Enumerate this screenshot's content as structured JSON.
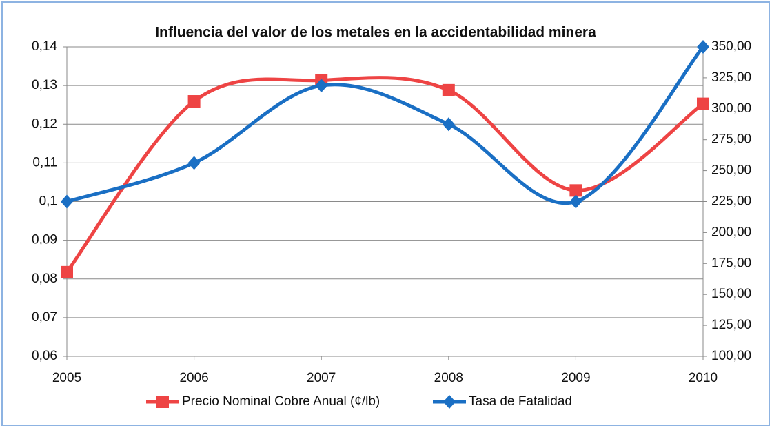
{
  "chart_data": {
    "type": "line",
    "title": "Influencia del valor de los metales en la accidentabilidad minera",
    "categories": [
      "2005",
      "2006",
      "2007",
      "2008",
      "2009",
      "2010"
    ],
    "series": [
      {
        "name": "Precio Nominal Cobre Anual (¢/lb)",
        "color": "#ee4444",
        "marker": "square",
        "axis": "y2",
        "values": [
          168,
          306,
          323,
          315,
          234,
          304
        ]
      },
      {
        "name": "Tasa de Fatalidad",
        "color": "#1a6fc4",
        "marker": "diamond",
        "values": [
          0.1,
          0.11,
          0.13,
          0.12,
          0.1,
          0.14
        ]
      }
    ],
    "ylim": [
      0.06,
      0.14
    ],
    "yticks": [
      {
        "value": 0.06,
        "label": "0,06"
      },
      {
        "value": 0.07,
        "label": "0,07"
      },
      {
        "value": 0.08,
        "label": "0,08"
      },
      {
        "value": 0.09,
        "label": "0,09"
      },
      {
        "value": 0.1,
        "label": "0,1"
      },
      {
        "value": 0.11,
        "label": "0,11"
      },
      {
        "value": 0.12,
        "label": "0,12"
      },
      {
        "value": 0.13,
        "label": "0,13"
      },
      {
        "value": 0.14,
        "label": "0,14"
      }
    ],
    "y2lim": [
      100,
      350
    ],
    "y2ticks": [
      {
        "value": 100,
        "label": "100,00"
      },
      {
        "value": 125,
        "label": "125,00"
      },
      {
        "value": 150,
        "label": "150,00"
      },
      {
        "value": 175,
        "label": "175,00"
      },
      {
        "value": 200,
        "label": "200,00"
      },
      {
        "value": 225,
        "label": "225,00"
      },
      {
        "value": 250,
        "label": "250,00"
      },
      {
        "value": 275,
        "label": "275,00"
      },
      {
        "value": 300,
        "label": "300,00"
      },
      {
        "value": 325,
        "label": "325,00"
      },
      {
        "value": 350,
        "label": "350,00"
      }
    ],
    "grid": true,
    "smooth": true,
    "legend": "bottom"
  }
}
